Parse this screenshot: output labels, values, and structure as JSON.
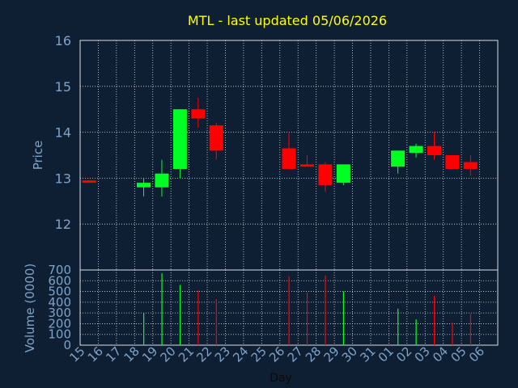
{
  "title": "MTL - last updated 05/06/2026",
  "colors": {
    "background": "#0f1f33",
    "title": "#ffff00",
    "axis_text": "#7fa3c8",
    "grid": "#d8dde4",
    "up": "#00ff22",
    "down": "#ff0000"
  },
  "chart_data": [
    {
      "type": "candlestick",
      "ylabel": "Price",
      "ylim": [
        11.0,
        16.0
      ],
      "yticks": [
        12,
        13,
        14,
        15,
        16
      ],
      "grid": true,
      "categories": [
        "15",
        "16",
        "17",
        "18",
        "19",
        "20",
        "21",
        "22",
        "23",
        "24",
        "25",
        "26",
        "27",
        "28",
        "29",
        "30",
        "31",
        "01",
        "02",
        "03",
        "04",
        "05",
        "06"
      ],
      "candles": [
        {
          "x": "15",
          "open": 12.95,
          "high": 12.95,
          "low": 12.9,
          "close": 12.9
        },
        {
          "x": "18",
          "open": 12.8,
          "high": 13.0,
          "low": 12.6,
          "close": 12.9
        },
        {
          "x": "19",
          "open": 12.8,
          "high": 13.4,
          "low": 12.6,
          "close": 13.1
        },
        {
          "x": "20",
          "open": 13.2,
          "high": 14.5,
          "low": 13.0,
          "close": 14.5
        },
        {
          "x": "21",
          "open": 14.5,
          "high": 14.75,
          "low": 14.1,
          "close": 14.3
        },
        {
          "x": "22",
          "open": 14.15,
          "high": 14.2,
          "low": 13.4,
          "close": 13.6
        },
        {
          "x": "26",
          "open": 13.65,
          "high": 14.0,
          "low": 13.2,
          "close": 13.2
        },
        {
          "x": "27",
          "open": 13.3,
          "high": 13.5,
          "low": 13.25,
          "close": 13.25
        },
        {
          "x": "28",
          "open": 13.3,
          "high": 13.35,
          "low": 12.7,
          "close": 12.85
        },
        {
          "x": "29",
          "open": 12.9,
          "high": 13.3,
          "low": 12.85,
          "close": 13.3
        },
        {
          "x": "01",
          "open": 13.25,
          "high": 13.6,
          "low": 13.1,
          "close": 13.6
        },
        {
          "x": "02",
          "open": 13.55,
          "high": 13.75,
          "low": 13.45,
          "close": 13.7
        },
        {
          "x": "03",
          "open": 13.7,
          "high": 14.0,
          "low": 13.4,
          "close": 13.5
        },
        {
          "x": "04",
          "open": 13.5,
          "high": 13.5,
          "low": 13.2,
          "close": 13.2
        },
        {
          "x": "05",
          "open": 13.35,
          "high": 13.5,
          "low": 13.05,
          "close": 13.2
        }
      ]
    },
    {
      "type": "bar",
      "xlabel": "Day",
      "ylabel": "Volume (0000)",
      "ylim": [
        0,
        700
      ],
      "yticks": [
        0,
        100,
        200,
        300,
        400,
        500,
        600,
        700
      ],
      "grid": true,
      "categories": [
        "15",
        "16",
        "17",
        "18",
        "19",
        "20",
        "21",
        "22",
        "23",
        "24",
        "25",
        "26",
        "27",
        "28",
        "29",
        "30",
        "31",
        "01",
        "02",
        "03",
        "04",
        "05",
        "06"
      ],
      "bars": [
        {
          "x": "18",
          "value": 300,
          "direction": "up"
        },
        {
          "x": "19",
          "value": 670,
          "direction": "up"
        },
        {
          "x": "20",
          "value": 560,
          "direction": "up"
        },
        {
          "x": "21",
          "value": 510,
          "direction": "down"
        },
        {
          "x": "22",
          "value": 430,
          "direction": "down"
        },
        {
          "x": "26",
          "value": 640,
          "direction": "down"
        },
        {
          "x": "27",
          "value": 490,
          "direction": "down"
        },
        {
          "x": "28",
          "value": 650,
          "direction": "down"
        },
        {
          "x": "29",
          "value": 500,
          "direction": "up"
        },
        {
          "x": "01",
          "value": 340,
          "direction": "up"
        },
        {
          "x": "02",
          "value": 240,
          "direction": "up"
        },
        {
          "x": "03",
          "value": 460,
          "direction": "down"
        },
        {
          "x": "04",
          "value": 210,
          "direction": "down"
        },
        {
          "x": "05",
          "value": 290,
          "direction": "down"
        }
      ]
    }
  ]
}
